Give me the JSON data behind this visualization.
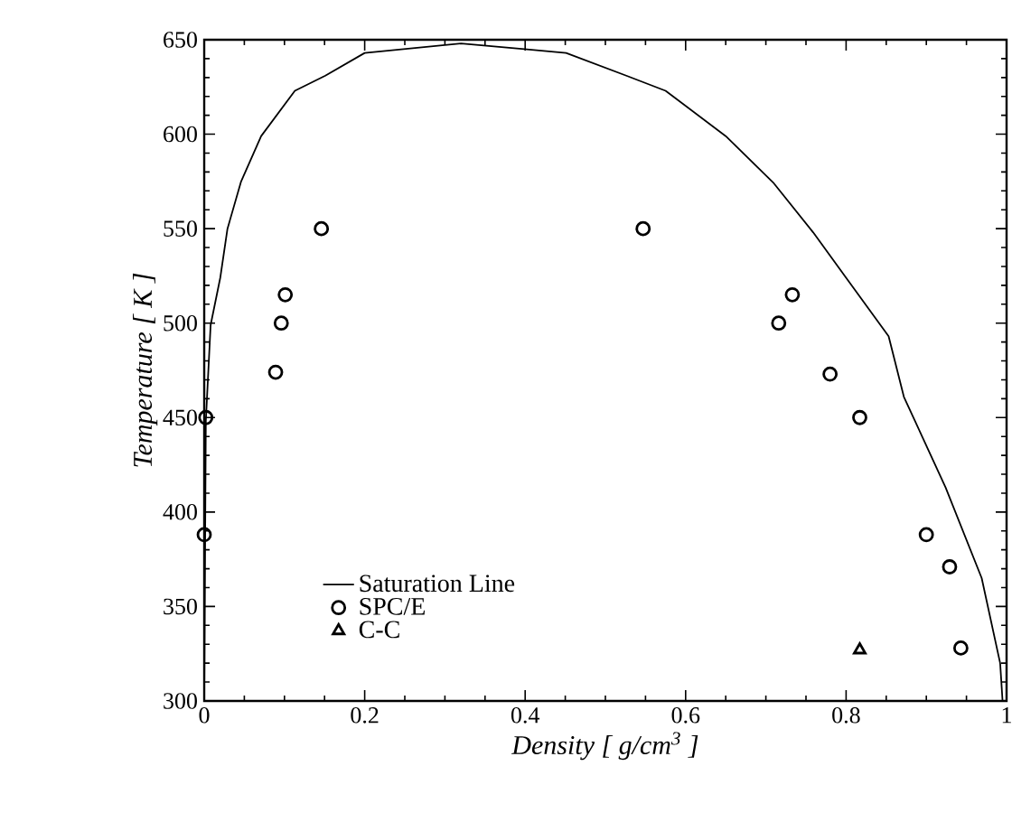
{
  "chart_data": {
    "type": "scatter",
    "xlabel": "*Density  [ g/cm$^{3}$ ]*",
    "ylabel": "*Temperature  [ K ]*",
    "xlim": [
      0,
      1
    ],
    "ylim": [
      300,
      650
    ],
    "xticks": [
      0,
      0.2,
      0.4,
      0.6,
      0.8,
      1
    ],
    "yticks": [
      300,
      350,
      400,
      450,
      500,
      550,
      600,
      650
    ],
    "legend": "bottom left",
    "grid": false,
    "series": [
      {
        "name": "Saturation Line",
        "type": "line",
        "marker": "none",
        "line_style": "solid",
        "color": "#000000",
        "x": [
          0,
          0.002,
          0.008,
          0.02,
          0.029,
          0.046,
          0.071,
          0.113,
          0.151,
          0.2,
          0.32,
          0.399,
          0.451,
          0.526,
          0.575,
          0.65,
          0.71,
          0.759,
          0.8,
          0.853,
          0.872,
          0.924,
          0.969,
          0.992,
          0.995
        ],
        "values": [
          300,
          448,
          499,
          524,
          550,
          575,
          599,
          623,
          631,
          643,
          648,
          645,
          643,
          631,
          623,
          599,
          574,
          548,
          524,
          493,
          461,
          413,
          365,
          320,
          300
        ]
      },
      {
        "name": "SPC/E",
        "marker": "circle",
        "color": "#000000",
        "x": [
          0,
          0.002,
          0.089,
          0.096,
          0.101,
          0.146,
          0.547,
          0.716,
          0.733,
          0.78,
          0.817,
          0.9,
          0.929,
          0.943
        ],
        "values": [
          388,
          450,
          474,
          500,
          515,
          550,
          550,
          500,
          515,
          473,
          450,
          388,
          371,
          328
        ]
      },
      {
        "name": "C-C",
        "marker": "triangle",
        "color": "#000000",
        "x": [
          0.817
        ],
        "values": [
          327
        ]
      }
    ]
  }
}
